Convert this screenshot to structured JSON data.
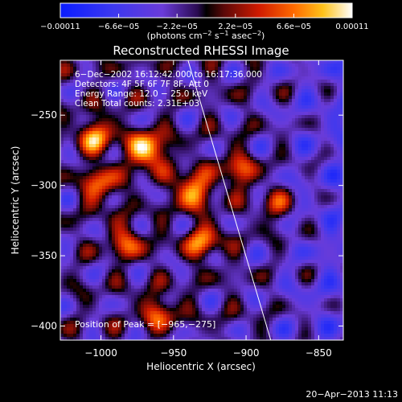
{
  "colorbar": {
    "tick_labels": [
      "−0.00011",
      "−6.6e−05",
      "−2.2e−05",
      "2.2e−05",
      "6.6e−05",
      "0.00011"
    ],
    "tick_values": [
      -0.00011,
      -6.6e-05,
      -2.2e-05,
      2.2e-05,
      6.6e-05,
      0.00011
    ],
    "range": [
      -0.00011,
      0.00011
    ],
    "units_prefix": "(photons cm",
    "units_exp1": "−2",
    "units_mid": " s",
    "units_exp2": "−1",
    "units_mid2": " asec",
    "units_exp3": "−2",
    "units_suffix": ")"
  },
  "chart_data": {
    "type": "heatmap",
    "title": "Reconstructed RHESSI Image",
    "xlabel": "Heliocentric X (arcsec)",
    "ylabel": "Heliocentric Y (arcsec)",
    "xlim": [
      -1028,
      -833
    ],
    "ylim": [
      -410,
      -211
    ],
    "x_ticks": [
      -1000,
      -950,
      -900,
      -850
    ],
    "x_tick_labels": [
      "−1000",
      "−950",
      "−900",
      "−850"
    ],
    "y_ticks": [
      -250,
      -300,
      -350,
      -400
    ],
    "y_tick_labels": [
      "−250",
      "−300",
      "−350",
      "−400"
    ],
    "annotations": [
      "6−Dec−2002 16:12:42.000 to 16:17:36.000",
      "Detectors: 4F 5F 6F 7F 8F, Att 0",
      "Energy Range: 12.0 − 25.0 keV",
      "Clean     Total counts: 2.31E+03"
    ],
    "peak_label": "Position of Peak = [−965,−275]",
    "peak": [
      -965,
      -275
    ],
    "limb_line": [
      [
        -940,
        -211
      ],
      [
        -883,
        -410
      ]
    ],
    "grid": false,
    "colormap": "rhessi-fire",
    "bright_sources": [
      {
        "x": -968,
        "y": -275,
        "value": 0.00011
      },
      {
        "x": -937,
        "y": -303,
        "value": 9e-05
      },
      {
        "x": -1003,
        "y": -265,
        "value": 8e-05
      },
      {
        "x": -1000,
        "y": -300,
        "value": 7e-05
      },
      {
        "x": -982,
        "y": -340,
        "value": 6e-05
      },
      {
        "x": -960,
        "y": -390,
        "value": 6e-05
      },
      {
        "x": -930,
        "y": -340,
        "value": 7e-05
      },
      {
        "x": -905,
        "y": -290,
        "value": 6e-05
      },
      {
        "x": -878,
        "y": -315,
        "value": 4.5e-05
      }
    ]
  },
  "footer": {
    "timestamp": "20−Apr−2013 11:13"
  }
}
